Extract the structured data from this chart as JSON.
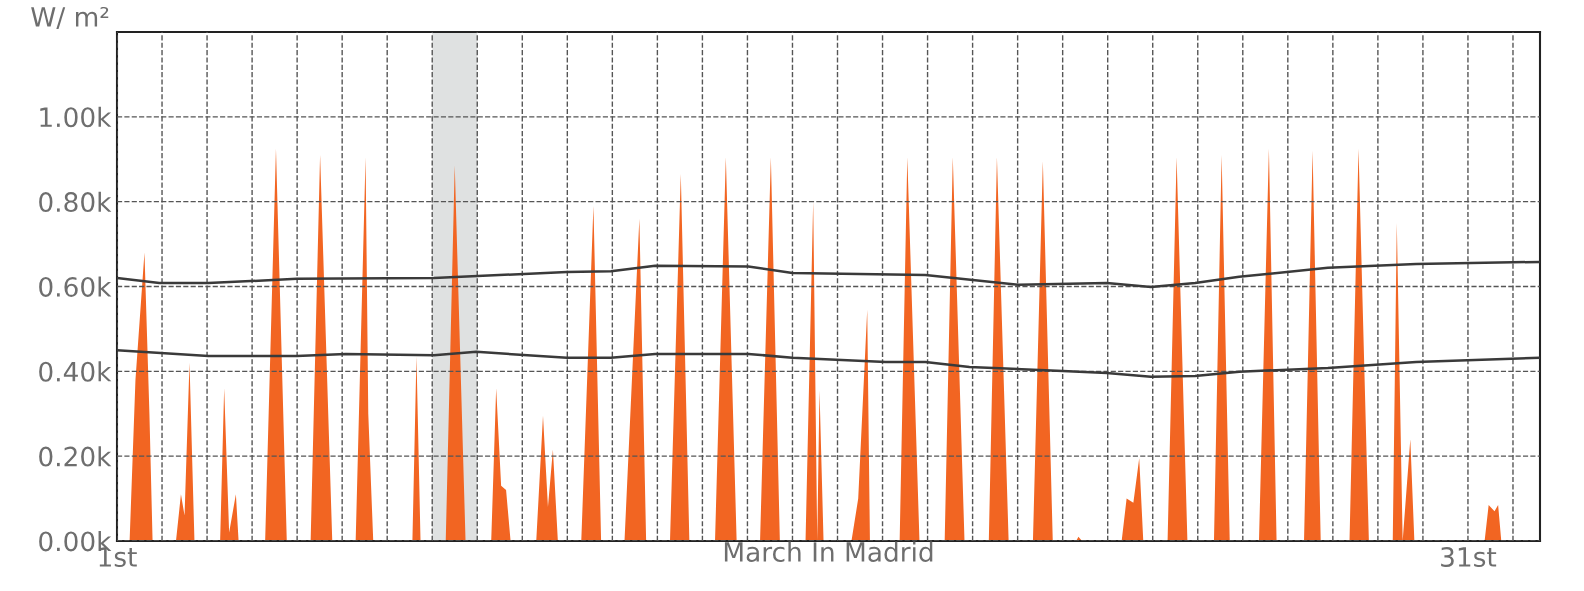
{
  "chart_data": {
    "type": "area",
    "xlabel": "March In Madrid",
    "ylabel": "W/ m²",
    "xlim": [
      1,
      32.6
    ],
    "ylim": [
      0,
      1200
    ],
    "xticks": [
      {
        "value": 1,
        "label": "1st"
      },
      {
        "value": 2,
        "label": null
      },
      {
        "value": 3,
        "label": null
      },
      {
        "value": 4,
        "label": null
      },
      {
        "value": 5,
        "label": null
      },
      {
        "value": 6,
        "label": null
      },
      {
        "value": 7,
        "label": null
      },
      {
        "value": 8,
        "label": null
      },
      {
        "value": 9,
        "label": null
      },
      {
        "value": 10,
        "label": null
      },
      {
        "value": 11,
        "label": null
      },
      {
        "value": 12,
        "label": null
      },
      {
        "value": 13,
        "label": null
      },
      {
        "value": 14,
        "label": null
      },
      {
        "value": 15,
        "label": null
      },
      {
        "value": 16,
        "label": null
      },
      {
        "value": 17,
        "label": null
      },
      {
        "value": 18,
        "label": null
      },
      {
        "value": 19,
        "label": null
      },
      {
        "value": 20,
        "label": null
      },
      {
        "value": 21,
        "label": null
      },
      {
        "value": 22,
        "label": null
      },
      {
        "value": 23,
        "label": null
      },
      {
        "value": 24,
        "label": null
      },
      {
        "value": 25,
        "label": null
      },
      {
        "value": 26,
        "label": null
      },
      {
        "value": 27,
        "label": null
      },
      {
        "value": 28,
        "label": null
      },
      {
        "value": 29,
        "label": null
      },
      {
        "value": 30,
        "label": null
      },
      {
        "value": 31,
        "label": "31st"
      },
      {
        "value": 32,
        "label": null
      }
    ],
    "yticks": [
      {
        "value": 0,
        "label": "0.00k"
      },
      {
        "value": 200,
        "label": "0.20k"
      },
      {
        "value": 400,
        "label": "0.40k"
      },
      {
        "value": 600,
        "label": "0.60k"
      },
      {
        "value": 800,
        "label": "0.80k"
      },
      {
        "value": 1000,
        "label": "1.00k"
      }
    ],
    "grid": true,
    "bands": [
      {
        "axis": "x",
        "from": 8,
        "to": 9,
        "label": null,
        "color": "#dfe1e1"
      }
    ],
    "series": [
      {
        "color": "#f26522",
        "x": [
          1,
          1.28,
          1.41,
          1.61,
          1.72,
          1.79,
          2.31,
          2.42,
          2.5,
          2.61,
          2.72,
          3.29,
          3.38,
          3.49,
          3.64,
          3.7,
          4.29,
          4.53,
          4.77,
          5.3,
          5.51,
          5.78,
          6.3,
          6.52,
          6.58,
          6.69,
          7.56,
          7.65,
          7.74,
          8.3,
          8.5,
          8.74,
          9.31,
          9.42,
          9.53,
          9.64,
          9.74,
          10.31,
          10.46,
          10.57,
          10.68,
          10.79,
          11.31,
          11.58,
          11.75,
          12.27,
          12.6,
          12.75,
          13.28,
          13.52,
          13.71,
          14.28,
          14.52,
          14.76,
          15.28,
          15.52,
          15.72,
          16.29,
          16.46,
          16.55,
          16.6,
          16.69,
          17.31,
          17.46,
          17.66,
          17.72,
          18.38,
          18.55,
          18.82,
          19.38,
          19.56,
          19.82,
          20.36,
          20.54,
          20.8,
          21.34,
          21.56,
          21.78,
          22.3,
          22.35,
          22.43,
          23.31,
          23.42,
          23.57,
          23.7,
          23.79,
          24.33,
          24.53,
          24.77,
          25.36,
          25.53,
          25.71,
          26.36,
          26.58,
          26.75,
          27.36,
          27.55,
          27.73,
          28.37,
          28.57,
          28.8,
          29.33,
          29.42,
          29.55,
          29.72,
          29.81,
          31.37,
          31.46,
          31.59,
          31.67,
          31.74,
          32.6
        ],
        "values": [
          0,
          0,
          380,
          680,
          300,
          0,
          0,
          110,
          60,
          420,
          0,
          0,
          360,
          20,
          110,
          0,
          0,
          925,
          0,
          0,
          910,
          0,
          0,
          905,
          300,
          0,
          0,
          435,
          0,
          0,
          885,
          0,
          0,
          360,
          130,
          120,
          0,
          0,
          295,
          80,
          215,
          0,
          0,
          790,
          0,
          0,
          760,
          0,
          0,
          865,
          0,
          0,
          905,
          0,
          0,
          905,
          0,
          0,
          800,
          0,
          355,
          0,
          0,
          100,
          545,
          0,
          0,
          905,
          0,
          0,
          905,
          0,
          0,
          905,
          0,
          0,
          895,
          0,
          0,
          10,
          0,
          0,
          100,
          90,
          195,
          0,
          0,
          905,
          0,
          0,
          910,
          0,
          0,
          925,
          0,
          0,
          920,
          0,
          0,
          925,
          0,
          0,
          750,
          0,
          240,
          0,
          0,
          85,
          70,
          85,
          0,
          0
        ]
      },
      {
        "type": "line",
        "color": "#3a3a3a",
        "x": [
          1,
          1.94,
          3.03,
          4.99,
          8.04,
          10.99,
          11.97,
          12.95,
          15.02,
          16.0,
          18.95,
          21.02,
          22.98,
          23.96,
          24.94,
          25.92,
          27.89,
          29.85,
          32.57
        ],
        "values": [
          620,
          608,
          608,
          618,
          620,
          634,
          636,
          649,
          647,
          632,
          627,
          604,
          608,
          599,
          608,
          623,
          644,
          653,
          658
        ]
      },
      {
        "type": "line",
        "color": "#3a3a3a",
        "x": [
          1,
          3.03,
          4.99,
          6.08,
          8.04,
          8.98,
          10.99,
          11.97,
          12.95,
          15.02,
          16.0,
          18.07,
          18.95,
          19.93,
          22.0,
          22.98,
          23.96,
          24.94,
          25.92,
          27.89,
          29.85,
          32.57
        ],
        "values": [
          450,
          436,
          436,
          441,
          438,
          446,
          432,
          432,
          441,
          441,
          432,
          422,
          422,
          410,
          401,
          396,
          387,
          389,
          399,
          408,
          422,
          432
        ]
      }
    ]
  }
}
